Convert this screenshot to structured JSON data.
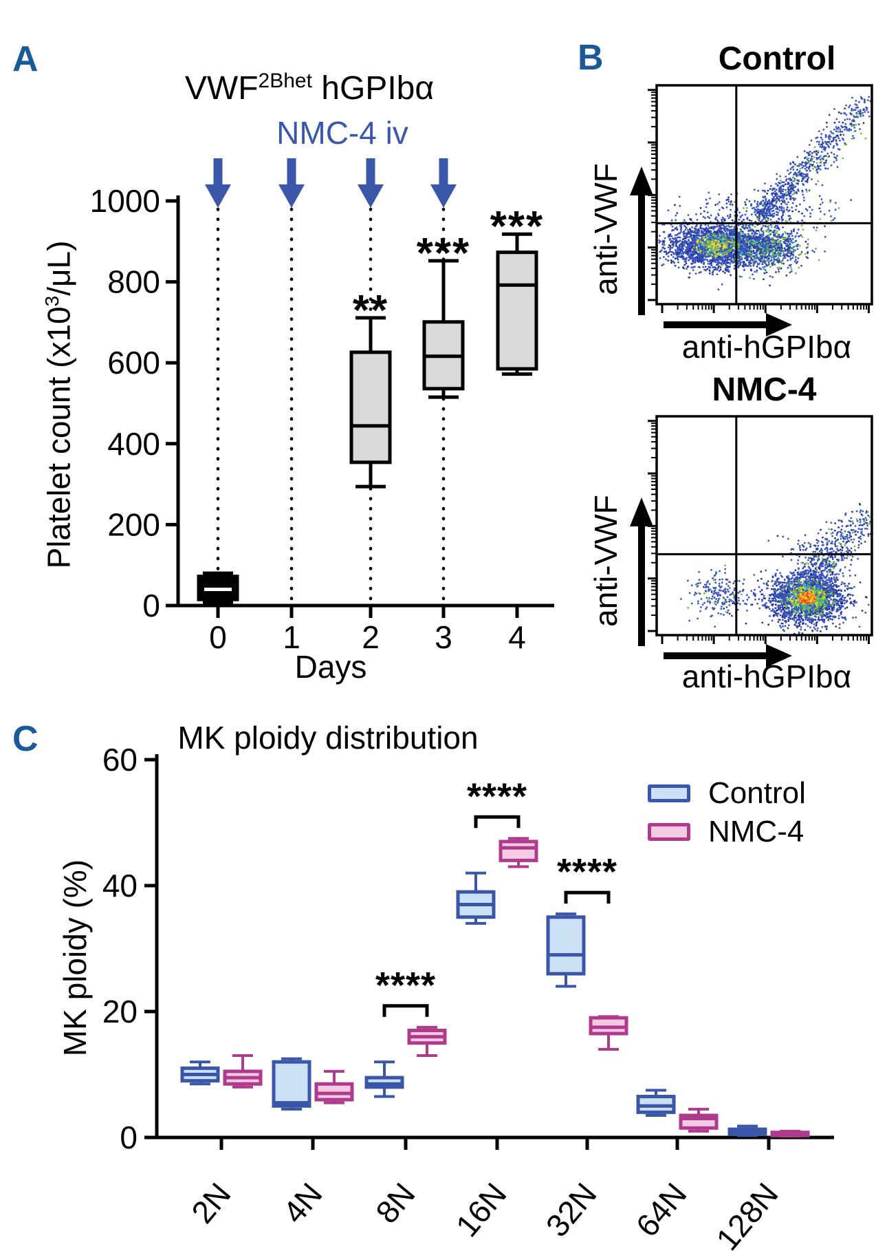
{
  "colors": {
    "panel_label": "#1A5A9A",
    "injection_blue": "#3A57A9",
    "arrow_blue": "#3A57A9",
    "boxA_fill": "#D9D9D9",
    "control_stroke": "#3A56A8",
    "control_fill": "#CBE0F4",
    "nmc_stroke": "#B03A8E",
    "nmc_fill": "#F4CCE2"
  },
  "figure": {
    "panelA": {
      "label": "A",
      "title_base": "VWF",
      "title_sup": "2Bhet",
      "title_rest": " hGPIbα",
      "injection_label": "NMC-4 iv",
      "ylabel_pre": "Platelet count (x10",
      "ylabel_sup": "3",
      "ylabel_post": "/μL)",
      "xlabel": "Days"
    },
    "panelB": {
      "label": "B",
      "plot_top_title": "Control",
      "plot_bottom_title": "NMC-4",
      "xlabel": "anti-hGPIbα",
      "ylabel": "anti-VWF"
    },
    "panelC": {
      "label": "C",
      "title": "MK ploidy distribution",
      "ylabel": "MK ploidy (%)"
    }
  },
  "chart_data": [
    {
      "type": "box",
      "panel": "A",
      "title": "VWF2Bhet hGPIba",
      "xlabel": "Days",
      "ylabel": "Platelet count (x10^3/uL)",
      "ylim": [
        0,
        1000
      ],
      "yticks": [
        0,
        200,
        400,
        600,
        800,
        1000
      ],
      "categories": [
        "0",
        "1",
        "2",
        "3",
        "4"
      ],
      "injection_arrow_days": [
        "0",
        "1",
        "2",
        "3"
      ],
      "boxes": [
        {
          "day": "0",
          "lo": 8,
          "q1": 15,
          "med": 40,
          "q3": 72,
          "hi": 80,
          "sig": "",
          "style": "filled-black"
        },
        {
          "day": "2",
          "lo": 294,
          "q1": 354,
          "med": 444,
          "q3": 626,
          "hi": 711,
          "sig": "**",
          "style": "gray"
        },
        {
          "day": "3",
          "lo": 515,
          "q1": 536,
          "med": 616,
          "q3": 701,
          "hi": 852,
          "sig": "***",
          "style": "gray"
        },
        {
          "day": "4",
          "lo": 572,
          "q1": 585,
          "med": 792,
          "q3": 873,
          "hi": 918,
          "sig": "***",
          "style": "gray"
        }
      ]
    },
    {
      "type": "scatter",
      "panel": "B",
      "x_scale": "log",
      "y_scale": "log",
      "plots": [
        {
          "title": "Control",
          "xlabel": "anti-hGPIba",
          "ylabel": "anti-VWF",
          "quadrant_x_frac": 0.37,
          "quadrant_y_frac": 0.63,
          "clusters": [
            {
              "kind": "gauss",
              "cx": 0.28,
              "cy": 0.73,
              "sx": 0.115,
              "sy": 0.052,
              "n": 2200,
              "core": "warm"
            },
            {
              "kind": "gauss",
              "cx": 0.52,
              "cy": 0.74,
              "sx": 0.09,
              "sy": 0.05,
              "n": 800,
              "core": "cool"
            },
            {
              "kind": "streak",
              "x0": 0.48,
              "y0": 0.6,
              "x1": 0.98,
              "y1": 0.09,
              "jx": 0.035,
              "jy": 0.03,
              "n": 720,
              "bias": 1.4
            },
            {
              "kind": "gauss",
              "cx": 0.5,
              "cy": 0.57,
              "sx": 0.17,
              "sy": 0.045,
              "n": 200,
              "core": "none"
            }
          ]
        },
        {
          "title": "NMC-4",
          "xlabel": "anti-hGPIba",
          "ylabel": "anti-VWF",
          "quadrant_x_frac": 0.37,
          "quadrant_y_frac": 0.63,
          "clusters": [
            {
              "kind": "gauss",
              "cx": 0.7,
              "cy": 0.83,
              "sx": 0.085,
              "sy": 0.058,
              "n": 2300,
              "core": "hot"
            },
            {
              "kind": "gauss",
              "cx": 0.3,
              "cy": 0.82,
              "sx": 0.07,
              "sy": 0.05,
              "n": 210,
              "core": "none"
            },
            {
              "kind": "streak",
              "x0": 0.75,
              "y0": 0.7,
              "x1": 0.99,
              "y1": 0.45,
              "jx": 0.05,
              "jy": 0.04,
              "n": 380,
              "bias": 1.6
            },
            {
              "kind": "gauss",
              "cx": 0.78,
              "cy": 0.6,
              "sx": 0.1,
              "sy": 0.05,
              "n": 60,
              "core": "none"
            }
          ]
        }
      ]
    },
    {
      "type": "box-grouped",
      "panel": "C",
      "title": "MK ploidy distribution",
      "ylabel": "MK ploidy (%)",
      "ylim": [
        0,
        60
      ],
      "yticks": [
        0,
        20,
        40,
        60
      ],
      "categories": [
        "2N",
        "4N",
        "8N",
        "16N",
        "32N",
        "64N",
        "128N"
      ],
      "legend_position": "top-right",
      "series": [
        {
          "name": "Control",
          "color": "#3A56A8",
          "fill": "#CBE0F4",
          "boxes": [
            {
              "lo": 8.5,
              "q1": 9,
              "med": 10,
              "q3": 11,
              "hi": 12
            },
            {
              "lo": 4.5,
              "q1": 5,
              "med": 5.5,
              "q3": 12,
              "hi": 12.5
            },
            {
              "lo": 6.5,
              "q1": 8,
              "med": 8.5,
              "q3": 9.5,
              "hi": 12
            },
            {
              "lo": 34,
              "q1": 35,
              "med": 37,
              "q3": 39,
              "hi": 42
            },
            {
              "lo": 24,
              "q1": 26,
              "med": 29,
              "q3": 35,
              "hi": 35.5
            },
            {
              "lo": 3.5,
              "q1": 4,
              "med": 5,
              "q3": 6.5,
              "hi": 7.5
            },
            {
              "lo": 0.3,
              "q1": 0.5,
              "med": 0.8,
              "q3": 1.3,
              "hi": 1.8
            }
          ]
        },
        {
          "name": "NMC-4",
          "color": "#B03A8E",
          "fill": "#F4CCE2",
          "boxes": [
            {
              "lo": 8,
              "q1": 8.5,
              "med": 9.5,
              "q3": 10.5,
              "hi": 13
            },
            {
              "lo": 5.5,
              "q1": 6,
              "med": 7,
              "q3": 8.5,
              "hi": 10.5
            },
            {
              "lo": 13,
              "q1": 15,
              "med": 16,
              "q3": 17,
              "hi": 17.5
            },
            {
              "lo": 43,
              "q1": 44,
              "med": 46,
              "q3": 47,
              "hi": 47.5
            },
            {
              "lo": 14,
              "q1": 16.5,
              "med": 17.5,
              "q3": 19,
              "hi": 19.2
            },
            {
              "lo": 1,
              "q1": 1.5,
              "med": 3,
              "q3": 3.5,
              "hi": 4.5
            },
            {
              "lo": 0.2,
              "q1": 0.3,
              "med": 0.5,
              "q3": 0.8,
              "hi": 1.0
            }
          ]
        }
      ],
      "significance": [
        {
          "category": "8N",
          "label": "****"
        },
        {
          "category": "16N",
          "label": "****"
        },
        {
          "category": "32N",
          "label": "****"
        }
      ]
    }
  ]
}
